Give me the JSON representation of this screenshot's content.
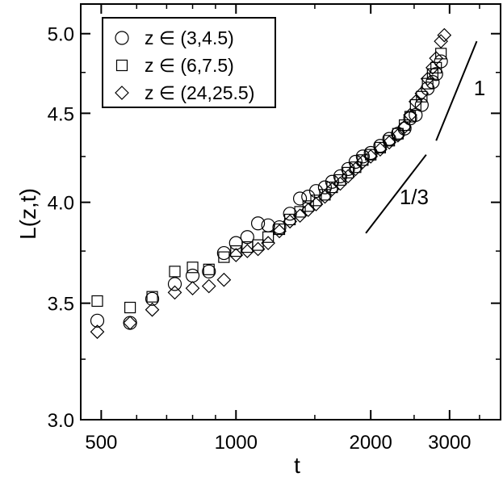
{
  "chart_data": {
    "type": "scatter",
    "title": "",
    "xlabel": "t",
    "ylabel": "L(z,t)",
    "xscale": "log",
    "yscale": "log",
    "xlim": [
      450,
      3900
    ],
    "ylim": [
      3.0,
      5.2
    ],
    "x_ticks": [
      {
        "value": 500,
        "label": "500"
      },
      {
        "value": 1000,
        "label": "1000"
      },
      {
        "value": 2000,
        "label": "2000"
      },
      {
        "value": 3000,
        "label": "3000"
      }
    ],
    "x_minor_ticks": [
      600,
      700,
      800,
      900,
      1500,
      2500,
      3500
    ],
    "y_ticks": [
      {
        "value": 3.0,
        "label": "3.0"
      },
      {
        "value": 3.5,
        "label": "3.5"
      },
      {
        "value": 4.0,
        "label": "4.0"
      },
      {
        "value": 4.5,
        "label": "4.5"
      },
      {
        "value": 5.0,
        "label": "5.0"
      }
    ],
    "legend": {
      "position": "top-left"
    },
    "series": [
      {
        "name": "z ∈ (3,4.5)",
        "marker": "circle",
        "points": [
          [
            490,
            3.42
          ],
          [
            580,
            3.41
          ],
          [
            650,
            3.52
          ],
          [
            730,
            3.59
          ],
          [
            800,
            3.63
          ],
          [
            870,
            3.65
          ],
          [
            940,
            3.74
          ],
          [
            1000,
            3.79
          ],
          [
            1060,
            3.82
          ],
          [
            1120,
            3.89
          ],
          [
            1180,
            3.88
          ],
          [
            1250,
            3.87
          ],
          [
            1320,
            3.94
          ],
          [
            1390,
            4.02
          ],
          [
            1450,
            4.03
          ],
          [
            1510,
            4.06
          ],
          [
            1580,
            4.08
          ],
          [
            1640,
            4.11
          ],
          [
            1710,
            4.14
          ],
          [
            1780,
            4.18
          ],
          [
            1850,
            4.22
          ],
          [
            1920,
            4.25
          ],
          [
            2000,
            4.27
          ],
          [
            2100,
            4.31
          ],
          [
            2200,
            4.35
          ],
          [
            2300,
            4.38
          ],
          [
            2380,
            4.41
          ],
          [
            2450,
            4.47
          ],
          [
            2520,
            4.49
          ],
          [
            2600,
            4.55
          ],
          [
            2680,
            4.65
          ],
          [
            2750,
            4.69
          ],
          [
            2800,
            4.74
          ],
          [
            2870,
            4.82
          ]
        ]
      },
      {
        "name": "z ∈ (6,7.5)",
        "marker": "square",
        "points": [
          [
            490,
            3.51
          ],
          [
            580,
            3.48
          ],
          [
            650,
            3.53
          ],
          [
            730,
            3.65
          ],
          [
            800,
            3.67
          ],
          [
            870,
            3.66
          ],
          [
            940,
            3.72
          ],
          [
            1000,
            3.75
          ],
          [
            1060,
            3.77
          ],
          [
            1120,
            3.78
          ],
          [
            1180,
            3.82
          ],
          [
            1250,
            3.86
          ],
          [
            1320,
            3.91
          ],
          [
            1390,
            3.95
          ],
          [
            1450,
            3.98
          ],
          [
            1510,
            4.01
          ],
          [
            1580,
            4.04
          ],
          [
            1640,
            4.08
          ],
          [
            1710,
            4.12
          ],
          [
            1780,
            4.16
          ],
          [
            1850,
            4.19
          ],
          [
            1920,
            4.23
          ],
          [
            2000,
            4.26
          ],
          [
            2100,
            4.3
          ],
          [
            2200,
            4.34
          ],
          [
            2300,
            4.38
          ],
          [
            2380,
            4.43
          ],
          [
            2450,
            4.48
          ],
          [
            2520,
            4.55
          ],
          [
            2600,
            4.6
          ],
          [
            2680,
            4.68
          ],
          [
            2750,
            4.74
          ],
          [
            2800,
            4.78
          ],
          [
            2870,
            4.87
          ]
        ]
      },
      {
        "name": "z ∈ (24,25.5)",
        "marker": "diamond",
        "points": [
          [
            490,
            3.37
          ],
          [
            580,
            3.41
          ],
          [
            650,
            3.47
          ],
          [
            730,
            3.55
          ],
          [
            800,
            3.57
          ],
          [
            870,
            3.58
          ],
          [
            940,
            3.61
          ],
          [
            1000,
            3.73
          ],
          [
            1060,
            3.75
          ],
          [
            1120,
            3.76
          ],
          [
            1180,
            3.79
          ],
          [
            1250,
            3.85
          ],
          [
            1320,
            3.9
          ],
          [
            1390,
            3.93
          ],
          [
            1450,
            3.96
          ],
          [
            1510,
            3.99
          ],
          [
            1580,
            4.03
          ],
          [
            1640,
            4.07
          ],
          [
            1710,
            4.1
          ],
          [
            1780,
            4.14
          ],
          [
            1850,
            4.18
          ],
          [
            1920,
            4.22
          ],
          [
            2000,
            4.25
          ],
          [
            2100,
            4.29
          ],
          [
            2200,
            4.33
          ],
          [
            2300,
            4.37
          ],
          [
            2380,
            4.42
          ],
          [
            2450,
            4.49
          ],
          [
            2520,
            4.57
          ],
          [
            2600,
            4.62
          ],
          [
            2680,
            4.71
          ],
          [
            2750,
            4.78
          ],
          [
            2800,
            4.84
          ],
          [
            2870,
            4.95
          ],
          [
            2920,
            4.99
          ]
        ]
      }
    ],
    "annotations": [
      {
        "label": "1",
        "segment_from": [
          2800,
          4.34
        ],
        "segment_to": [
          3450,
          4.95
        ],
        "label_at": [
          3500,
          4.61
        ]
      },
      {
        "label": "1/3",
        "segment_from": [
          1950,
          3.84
        ],
        "segment_to": [
          2660,
          4.26
        ],
        "label_at": [
          2500,
          3.99
        ]
      }
    ]
  }
}
